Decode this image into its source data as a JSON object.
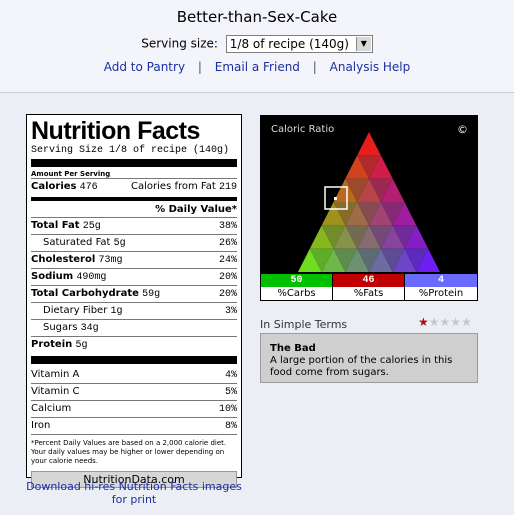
{
  "recipe_title": "Better-than-Sex-Cake",
  "serving": {
    "label": "Serving size:",
    "selected": "1/8 of recipe (140g)"
  },
  "links": {
    "add": "Add to Pantry",
    "sep": "|",
    "email": "Email a Friend",
    "help": "Analysis Help"
  },
  "nutrition": {
    "title": "Nutrition Facts",
    "serving_size": "Serving Size 1/8 of recipe (140g)",
    "amount_per": "Amount Per Serving",
    "calories_label": "Calories",
    "calories_value": "476",
    "fat_cal_label": "Calories from Fat",
    "fat_cal_value": "219",
    "dv_header": "% Daily Value*",
    "rows": [
      {
        "label": "Total Fat",
        "amount": "25g",
        "pct": "38%"
      },
      {
        "label": "Saturated Fat",
        "amount": "5g",
        "pct": "26%"
      },
      {
        "label": "Cholesterol",
        "amount": "73mg",
        "pct": "24%"
      },
      {
        "label": "Sodium",
        "amount": "490mg",
        "pct": "20%"
      },
      {
        "label": "Total Carbohydrate",
        "amount": "59g",
        "pct": "20%"
      },
      {
        "label": "Dietary Fiber",
        "amount": "1g",
        "pct": "3%"
      },
      {
        "label": "Sugars",
        "amount": "34g",
        "pct": ""
      },
      {
        "label": "Protein",
        "amount": "5g",
        "pct": ""
      }
    ],
    "vitamins": [
      {
        "label": "Vitamin A",
        "pct": "4%"
      },
      {
        "label": "Vitamin C",
        "pct": "5%"
      },
      {
        "label": "Calcium",
        "pct": "10%"
      },
      {
        "label": "Iron",
        "pct": "8%"
      }
    ],
    "footnote": "*Percent Daily Values are based on a 2,000 calorie diet. Your daily values may be higher or lower depending on your calorie needs.",
    "brand": "NutritionData.com"
  },
  "download_text": "Download hi-res Nutrition Facts images for print",
  "caloric_ratio": {
    "label": "Caloric Ratio",
    "copyright": "©",
    "carbs_value": "50",
    "carbs_label": "%Carbs",
    "carbs_color": "#00c000",
    "fats_value": "46",
    "fats_label": "%Fats",
    "fats_color": "#c00000",
    "protein_value": "4",
    "protein_label": "%Protein",
    "protein_color": "#6a6aff"
  },
  "simple_terms": {
    "label": "In Simple Terms",
    "rating": 1,
    "rating_max": 5,
    "heading": "The Bad",
    "text": "A large portion of the calories in this food come from sugars."
  }
}
